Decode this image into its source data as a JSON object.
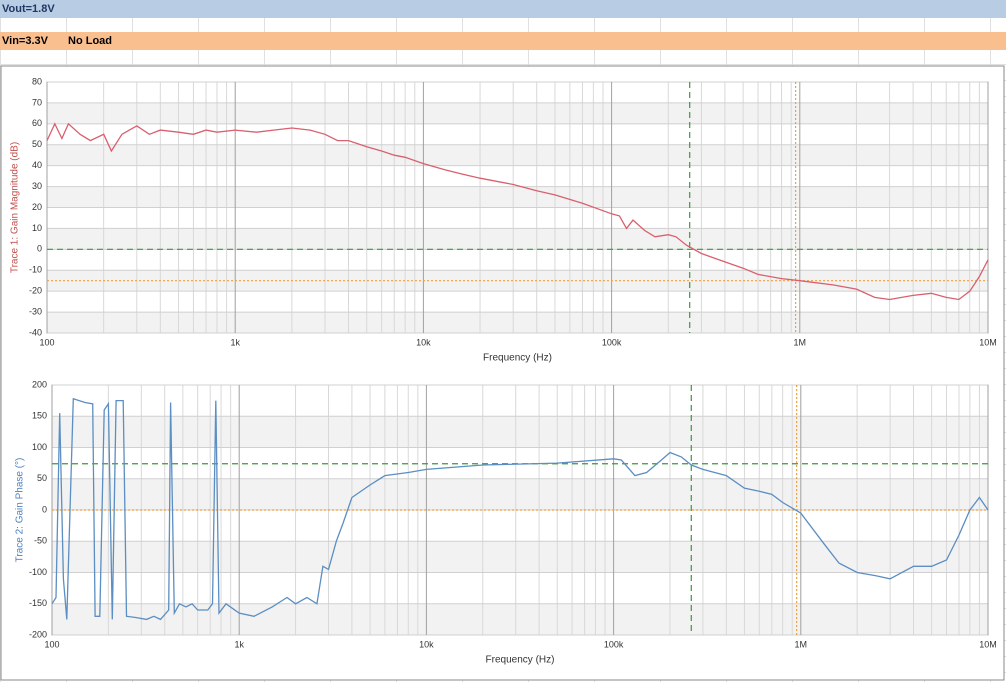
{
  "header": {
    "vout": "Vout=1.8V",
    "vin": "Vin=3.3V",
    "load": "No Load"
  },
  "chart_data": [
    {
      "type": "line",
      "log_x": true,
      "grid": true,
      "minor_grid": true,
      "color_axis_label": "#c0504d",
      "ylabel": "Trace 1: Gain Magnitude (dB)",
      "xlabel": "Frequency (Hz)",
      "xlim": [
        100,
        10000000
      ],
      "xticks": [
        100,
        {
          "value": 1000,
          "label": "1k"
        },
        {
          "value": 10000,
          "label": "10k"
        },
        {
          "value": 100000,
          "label": "100k"
        },
        {
          "value": 1000000,
          "label": "1M"
        },
        {
          "value": 10000000,
          "label": "10M"
        }
      ],
      "ylim": [
        -40,
        80
      ],
      "yticks": [
        -40,
        -30,
        -20,
        -10,
        0,
        10,
        20,
        30,
        40,
        50,
        60,
        70,
        80
      ],
      "x": [
        100,
        110,
        120,
        130,
        150,
        170,
        200,
        220,
        250,
        300,
        350,
        400,
        500,
        600,
        700,
        800,
        1000,
        1300,
        1600,
        2000,
        2500,
        3000,
        3500,
        4000,
        5000,
        6000,
        7000,
        8000,
        10000,
        13000,
        16000,
        20000,
        30000,
        40000,
        50000,
        70000,
        100000,
        110000,
        120000,
        130000,
        150000,
        170000,
        200000,
        220000,
        250000,
        300000,
        400000,
        500000,
        600000,
        800000,
        1000000,
        1500000,
        2000000,
        2500000,
        3000000,
        4000000,
        5000000,
        6000000,
        7000000,
        8000000,
        9000000,
        10000000
      ],
      "series": [
        {
          "name": "Gain",
          "color": "#d9606e",
          "values": [
            52,
            60,
            53,
            60,
            55,
            52,
            55,
            47,
            55,
            59,
            55,
            57,
            56,
            55,
            57,
            56,
            57,
            56,
            57,
            58,
            57,
            55,
            52,
            52,
            49,
            47,
            45,
            44,
            41,
            38,
            36,
            34,
            31,
            28,
            26,
            22,
            17,
            16,
            10,
            14,
            9,
            6,
            7,
            6,
            2,
            -2,
            -6,
            -9,
            -12,
            -14,
            -15,
            -17,
            -19,
            -23,
            -24,
            -22,
            -21,
            -23,
            -24,
            -20,
            -13,
            -5
          ]
        }
      ],
      "cursors": [
        {
          "axis": "x",
          "value": 260000,
          "color": "#3a9a3a",
          "dash": "6,4"
        },
        {
          "axis": "x",
          "value": 950000,
          "color": "#f0a040",
          "dash": "2,2"
        },
        {
          "axis": "y",
          "value": 0,
          "color": "#3a9a3a",
          "dash": "6,4"
        },
        {
          "axis": "y",
          "value": -15,
          "color": "#f0a040",
          "dash": "2,2"
        }
      ]
    },
    {
      "type": "line",
      "log_x": true,
      "grid": true,
      "minor_grid": true,
      "color_axis_label": "#4f81bd",
      "ylabel": "Trace 2: Gain Phase (°)",
      "xlabel": "Frequency (Hz)",
      "xlim": [
        100,
        10000000
      ],
      "xticks": [
        100,
        {
          "value": 1000,
          "label": "1k"
        },
        {
          "value": 10000,
          "label": "10k"
        },
        {
          "value": 100000,
          "label": "100k"
        },
        {
          "value": 1000000,
          "label": "1M"
        },
        {
          "value": 10000000,
          "label": "10M"
        }
      ],
      "ylim": [
        -200,
        200
      ],
      "yticks": [
        -200,
        -150,
        -100,
        -50,
        0,
        50,
        100,
        150,
        200
      ],
      "x": [
        100,
        105,
        110,
        115,
        120,
        130,
        150,
        165,
        170,
        180,
        190,
        200,
        210,
        220,
        240,
        250,
        280,
        320,
        350,
        380,
        420,
        430,
        450,
        480,
        520,
        560,
        600,
        680,
        720,
        750,
        780,
        850,
        1000,
        1200,
        1500,
        1800,
        2000,
        2300,
        2600,
        2800,
        3000,
        3300,
        3600,
        4000,
        5000,
        6000,
        8000,
        10000,
        20000,
        50000,
        100000,
        110000,
        130000,
        150000,
        180000,
        200000,
        230000,
        260000,
        300000,
        400000,
        500000,
        600000,
        700000,
        800000,
        1000000,
        1300000,
        1600000,
        2000000,
        2500000,
        3000000,
        4000000,
        5000000,
        6000000,
        7000000,
        8000000,
        9000000,
        10000000
      ],
      "series": [
        {
          "name": "Phase",
          "color": "#5b8ec2",
          "values": [
            -150,
            -140,
            155,
            -110,
            -175,
            178,
            172,
            170,
            -170,
            -170,
            160,
            170,
            -175,
            175,
            175,
            -170,
            -172,
            -175,
            -170,
            -175,
            -160,
            172,
            -165,
            -150,
            -155,
            -150,
            -160,
            -160,
            -150,
            175,
            -165,
            -150,
            -165,
            -170,
            -155,
            -140,
            -150,
            -140,
            -150,
            -90,
            -95,
            -50,
            -20,
            20,
            40,
            55,
            60,
            65,
            72,
            75,
            82,
            80,
            55,
            60,
            80,
            92,
            85,
            72,
            65,
            55,
            35,
            30,
            25,
            12,
            -5,
            -50,
            -85,
            -100,
            -105,
            -110,
            -90,
            -90,
            -80,
            -40,
            0,
            20,
            0
          ]
        }
      ],
      "cursors": [
        {
          "axis": "x",
          "value": 260000,
          "color": "#3a9a3a",
          "dash": "6,4"
        },
        {
          "axis": "x",
          "value": 950000,
          "color": "#f0a040",
          "dash": "2,2"
        },
        {
          "axis": "y",
          "value": 74,
          "color": "#3a9a3a",
          "dash": "6,4"
        },
        {
          "axis": "y",
          "value": 0,
          "color": "#f0a040",
          "dash": "2,2"
        }
      ]
    }
  ]
}
